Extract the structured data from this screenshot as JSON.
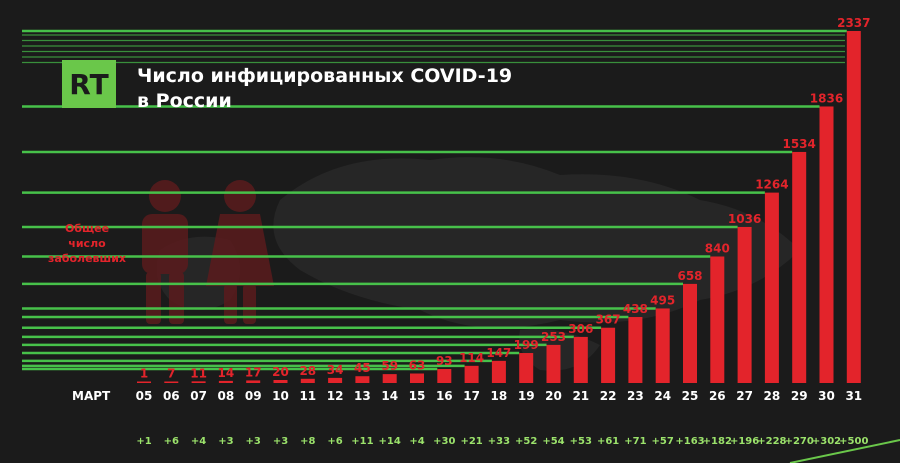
{
  "brand": {
    "logo_text": "RT",
    "logo_color": "#6ac74a"
  },
  "colors": {
    "bar": "#e3242b",
    "line": "#47c14a",
    "background": "#1b1b1b",
    "delta": "#9be26b"
  },
  "chart_data": {
    "type": "bar",
    "title_lines": [
      "Число инфицированных COVID-19",
      "в России"
    ],
    "ylabel_lines": [
      "Общее",
      "число",
      "заболевших"
    ],
    "xlabel": "МАРТ",
    "categories": [
      "05",
      "06",
      "07",
      "08",
      "09",
      "10",
      "11",
      "12",
      "13",
      "14",
      "15",
      "16",
      "17",
      "18",
      "19",
      "20",
      "21",
      "22",
      "23",
      "24",
      "25",
      "26",
      "27",
      "28",
      "29",
      "30",
      "31"
    ],
    "values": [
      1,
      7,
      11,
      14,
      17,
      20,
      28,
      34,
      45,
      59,
      63,
      93,
      114,
      147,
      199,
      253,
      306,
      367,
      438,
      495,
      658,
      840,
      1036,
      1264,
      1534,
      1836,
      2337
    ],
    "value_labels": [
      "1",
      "7",
      "11",
      "14",
      "17",
      "20",
      "28",
      "34",
      "45",
      "59",
      "63",
      "93",
      "114",
      "147",
      "199",
      "253",
      "306",
      "367",
      "438",
      "495",
      "658",
      "840",
      "1036",
      "1264",
      "1534",
      "1836",
      "2337"
    ],
    "daily_increase": [
      "+1",
      "+6",
      "+4",
      "+3",
      "+3",
      "+3",
      "+8",
      "+6",
      "+11",
      "+14",
      "+4",
      "+30",
      "+21",
      "+33",
      "+52",
      "+54",
      "+53",
      "+61",
      "+71",
      "+57",
      "+163",
      "+182",
      "+196",
      "+228",
      "+270",
      "+302",
      "+500"
    ],
    "ylim": [
      0,
      2337
    ],
    "grid": false,
    "guide_lines": true
  }
}
